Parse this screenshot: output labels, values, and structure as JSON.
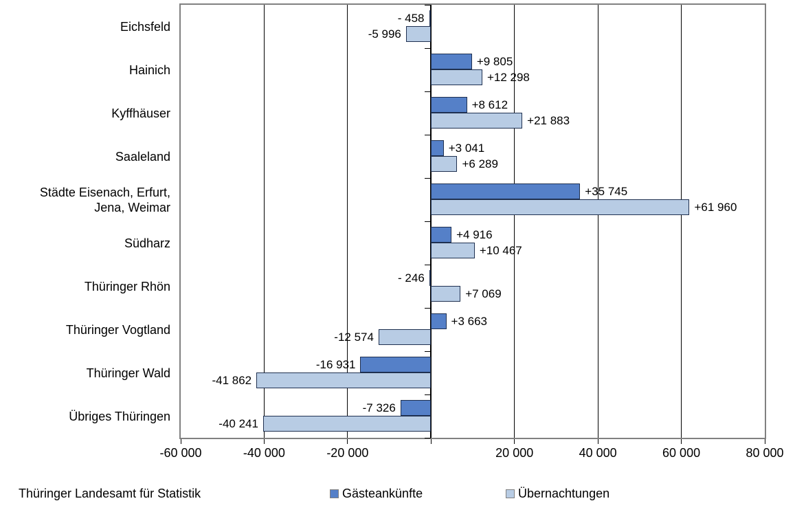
{
  "footer": {
    "source_label": "Thüringer Landesamt für Statistik"
  },
  "colors": {
    "background": "#ffffff",
    "plot_border": "#808080",
    "gridline": "#000000",
    "axis": "#000000",
    "text": "#000000",
    "bar_border": "#1F3050",
    "series_dark_blue": "#5580C8",
    "series_light_blue": "#B8CCE4"
  },
  "chart_data": {
    "type": "bar",
    "orientation": "horizontal",
    "title": "",
    "xlabel": "",
    "ylabel": "",
    "grid": true,
    "legend_position": "bottom",
    "xlim": [
      -60000,
      80000
    ],
    "x_tick_interval": 20000,
    "xticks": [
      {
        "value": -60000,
        "label": "-60 000"
      },
      {
        "value": -40000,
        "label": "-40 000"
      },
      {
        "value": -20000,
        "label": "-20 000"
      },
      {
        "value": 0,
        "label": ""
      },
      {
        "value": 20000,
        "label": "20 000"
      },
      {
        "value": 40000,
        "label": "40 000"
      },
      {
        "value": 60000,
        "label": "60 000"
      },
      {
        "value": 80000,
        "label": "80 000"
      }
    ],
    "categories": [
      "Eichsfeld",
      "Hainich",
      "Kyffhäuser",
      "Saaleland",
      "Städte Eisenach, Erfurt,\nJena, Weimar",
      "Südharz",
      "Thüringer Rhön",
      "Thüringer Vogtland",
      "Thüringer Wald",
      "Übriges Thüringen"
    ],
    "series": [
      {
        "name": "Gästeankünfte",
        "color": "#5580C8",
        "values": [
          -458,
          9805,
          8612,
          3041,
          35745,
          4916,
          -246,
          3663,
          -16931,
          -7326
        ],
        "value_labels": [
          "- 458",
          "+9 805",
          "+8 612",
          "+3 041",
          "+35 745",
          "+4 916",
          "- 246",
          "+3 663",
          "-16 931",
          "-7 326"
        ]
      },
      {
        "name": "Übernachtungen",
        "color": "#B8CCE4",
        "values": [
          -5996,
          12298,
          21883,
          6289,
          61960,
          10467,
          7069,
          -12574,
          -41862,
          -40241
        ],
        "value_labels": [
          "-5 996",
          "+12 298",
          "+21 883",
          "+6 289",
          "+61 960",
          "+10 467",
          "+7 069",
          "-12 574",
          "-41 862",
          "-40 241"
        ]
      }
    ]
  }
}
